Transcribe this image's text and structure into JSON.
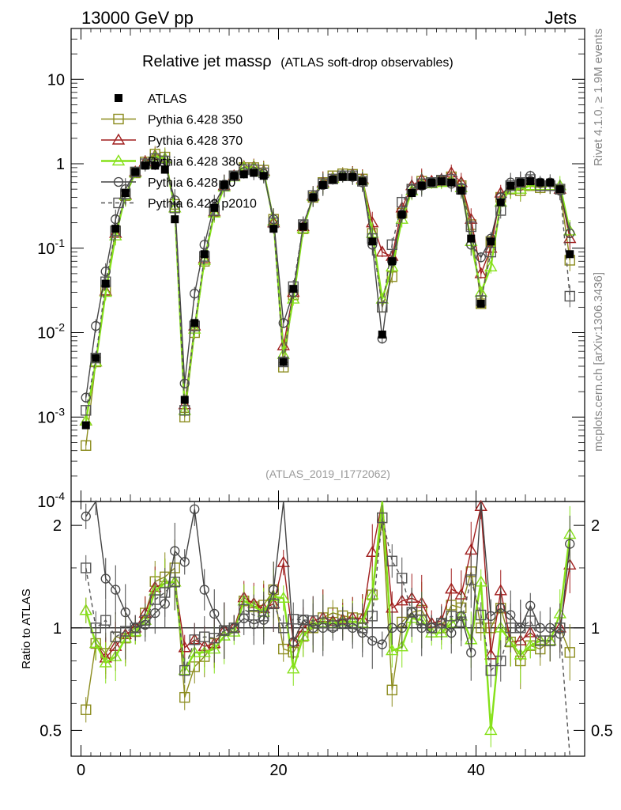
{
  "header": {
    "left_label": "13000 GeV pp",
    "right_label": "Jets",
    "side_label_top": "Rivet 4.1.0, ≥ 1.9M events",
    "side_label_bottom": "mcplots.cern.ch [arXiv:1306.3436]"
  },
  "chart_data": {
    "type": "line",
    "title": "Relative jet massρ",
    "subtitle": "(ATLAS soft-drop observables)",
    "watermark": "(ATLAS_2019_I1772062)",
    "xlabel": "",
    "ylabel_ratio": "Ratio to ATLAS",
    "xlim": [
      -1,
      51
    ],
    "ylim": [
      0.0001,
      40
    ],
    "yscale": "log",
    "ratio_ylim": [
      0.42,
      2.35
    ],
    "x_ticks": [
      "0",
      "20",
      "40"
    ],
    "y_ticks": [
      "10",
      "1",
      "10^-1",
      "10^-2",
      "10^-3",
      "10^-4"
    ],
    "ratio_ticks": [
      "2",
      "1",
      "0.5"
    ],
    "x": [
      0.5,
      1.5,
      2.5,
      3.5,
      4.5,
      5.5,
      6.5,
      7.5,
      8.5,
      9.5,
      10.5,
      11.5,
      12.5,
      13.5,
      14.5,
      15.5,
      16.5,
      17.5,
      18.5,
      19.5,
      20.5,
      21.5,
      22.5,
      23.5,
      24.5,
      25.5,
      26.5,
      27.5,
      28.5,
      29.5,
      30.5,
      31.5,
      32.5,
      33.5,
      34.5,
      35.5,
      36.5,
      37.5,
      38.5,
      39.5,
      40.5,
      41.5,
      42.5,
      43.5,
      44.5,
      45.5,
      46.5,
      47.5,
      48.5,
      49.5
    ],
    "data": {
      "name": "ATLAS",
      "values": [
        0.0008,
        0.005,
        0.038,
        0.17,
        0.45,
        0.8,
        0.95,
        0.95,
        0.85,
        0.22,
        0.0016,
        0.013,
        0.085,
        0.3,
        0.56,
        0.72,
        0.75,
        0.78,
        0.72,
        0.17,
        0.0045,
        0.033,
        0.18,
        0.4,
        0.56,
        0.65,
        0.7,
        0.7,
        0.62,
        0.12,
        0.0095,
        0.07,
        0.25,
        0.45,
        0.55,
        0.6,
        0.62,
        0.6,
        0.48,
        0.13,
        0.022,
        0.12,
        0.35,
        0.55,
        0.6,
        0.62,
        0.6,
        0.6,
        0.5,
        0.085
      ]
    },
    "series": [
      {
        "name": "Pythia 6.428 350",
        "color": "#8c8c1e",
        "marker": "square",
        "values": [
          0.00046,
          0.0045,
          0.032,
          0.16,
          0.42,
          0.78,
          1.05,
          1.3,
          1.2,
          0.33,
          0.001,
          0.01,
          0.07,
          0.27,
          0.55,
          0.72,
          0.9,
          0.9,
          0.84,
          0.22,
          0.0039,
          0.028,
          0.17,
          0.4,
          0.6,
          0.72,
          0.76,
          0.75,
          0.66,
          0.15,
          0.02,
          0.046,
          0.26,
          0.5,
          0.62,
          0.6,
          0.62,
          0.7,
          0.55,
          0.19,
          0.022,
          0.12,
          0.4,
          0.5,
          0.48,
          0.55,
          0.52,
          0.55,
          0.5,
          0.072
        ]
      },
      {
        "name": "Pythia 6.428 370",
        "color": "#a01e1e",
        "marker": "triangle",
        "values": [
          0.0009,
          0.0045,
          0.031,
          0.15,
          0.43,
          0.8,
          1.05,
          1.25,
          1.15,
          0.3,
          0.0014,
          0.012,
          0.075,
          0.27,
          0.55,
          0.72,
          0.92,
          0.92,
          0.82,
          0.2,
          0.007,
          0.03,
          0.18,
          0.42,
          0.6,
          0.68,
          0.74,
          0.75,
          0.66,
          0.2,
          0.09,
          0.08,
          0.3,
          0.55,
          0.65,
          0.62,
          0.65,
          0.78,
          0.6,
          0.22,
          0.05,
          0.1,
          0.45,
          0.5,
          0.55,
          0.6,
          0.55,
          0.55,
          0.5,
          0.13
        ]
      },
      {
        "name": "Pythia 6.428 380",
        "color": "#86e11a",
        "marker": "triangle",
        "values": [
          0.0009,
          0.0045,
          0.03,
          0.14,
          0.42,
          0.78,
          1.0,
          1.22,
          1.15,
          0.3,
          0.0012,
          0.011,
          0.072,
          0.26,
          0.53,
          0.7,
          0.9,
          0.9,
          0.8,
          0.21,
          0.0055,
          0.025,
          0.17,
          0.41,
          0.58,
          0.67,
          0.73,
          0.73,
          0.64,
          0.15,
          0.025,
          0.06,
          0.22,
          0.48,
          0.58,
          0.58,
          0.6,
          0.62,
          0.52,
          0.12,
          0.03,
          0.06,
          0.35,
          0.5,
          0.5,
          0.55,
          0.55,
          0.55,
          0.55,
          0.16
        ]
      },
      {
        "name": "Pythia 6.428 p0",
        "color": "#444444",
        "marker": "circle",
        "values": [
          0.0017,
          0.012,
          0.053,
          0.22,
          0.5,
          0.8,
          0.97,
          1.05,
          1.0,
          0.37,
          0.0025,
          0.029,
          0.11,
          0.33,
          0.55,
          0.72,
          0.8,
          0.8,
          0.76,
          0.22,
          0.013,
          0.03,
          0.19,
          0.4,
          0.56,
          0.65,
          0.72,
          0.7,
          0.6,
          0.11,
          0.0085,
          0.07,
          0.25,
          0.5,
          0.55,
          0.6,
          0.64,
          0.58,
          0.52,
          0.11,
          0.078,
          0.13,
          0.4,
          0.6,
          0.6,
          0.72,
          0.6,
          0.6,
          0.48,
          0.15
        ]
      },
      {
        "name": "Pythia 6.428 p2010",
        "color": "#555555",
        "marker": "square",
        "dashed": true,
        "values": [
          0.0012,
          0.005,
          0.04,
          0.16,
          0.44,
          0.8,
          1.0,
          1.15,
          1.08,
          0.3,
          0.0012,
          0.012,
          0.08,
          0.28,
          0.55,
          0.72,
          0.85,
          0.85,
          0.78,
          0.2,
          0.0045,
          0.035,
          0.19,
          0.42,
          0.58,
          0.66,
          0.72,
          0.72,
          0.62,
          0.13,
          0.02,
          0.11,
          0.35,
          0.5,
          0.58,
          0.6,
          0.64,
          0.65,
          0.5,
          0.18,
          0.024,
          0.09,
          0.28,
          0.55,
          0.6,
          0.65,
          0.55,
          0.55,
          0.5,
          0.027
        ]
      }
    ],
    "legend_position": "top-left"
  }
}
